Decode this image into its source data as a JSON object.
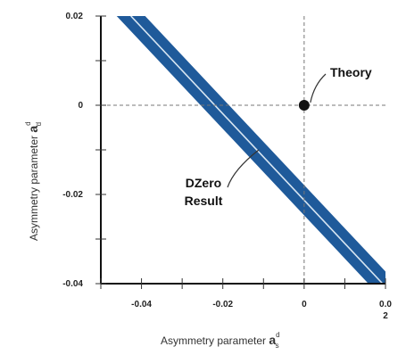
{
  "chart_data": {
    "type": "line",
    "xlabel": "Asymmetry parameter",
    "xlabel_symbol": "a",
    "xlabel_sup": "d",
    "xlabel_sub": "s",
    "ylabel": "Asymmetry parameter",
    "ylabel_symbol": "a",
    "ylabel_sup": "d",
    "ylabel_sub": "d",
    "xlim": [
      -0.05,
      0.02
    ],
    "ylim": [
      -0.04,
      0.02
    ],
    "xticks": [
      {
        "value": -0.04,
        "label": "-0.04"
      },
      {
        "value": -0.02,
        "label": "-0.02"
      },
      {
        "value": 0,
        "label": "0"
      }
    ],
    "xtick_last_label_lines": [
      "0.0",
      "2"
    ],
    "yticks": [
      {
        "value": 0.02,
        "label": "0.02"
      },
      {
        "value": 0,
        "label": "0"
      },
      {
        "value": -0.02,
        "label": "-0.02"
      },
      {
        "value": -0.04,
        "label": "-0.04"
      }
    ],
    "band": {
      "color": "#1f5a9a",
      "center_line_color": "#d8e6f2",
      "center": [
        [
          -0.0426,
          0.02
        ],
        [
          0.0193,
          -0.04
        ]
      ],
      "upper": [
        [
          -0.0391,
          0.02
        ],
        [
          0.0228,
          -0.04
        ]
      ],
      "lower": [
        [
          -0.0461,
          0.02
        ],
        [
          0.0158,
          -0.04
        ]
      ]
    },
    "theory_point": {
      "x": 0,
      "y": 0,
      "label": "Theory"
    },
    "result_label": [
      "DZero",
      "Result"
    ],
    "reference_lines": {
      "x": 0,
      "y": 0
    }
  }
}
